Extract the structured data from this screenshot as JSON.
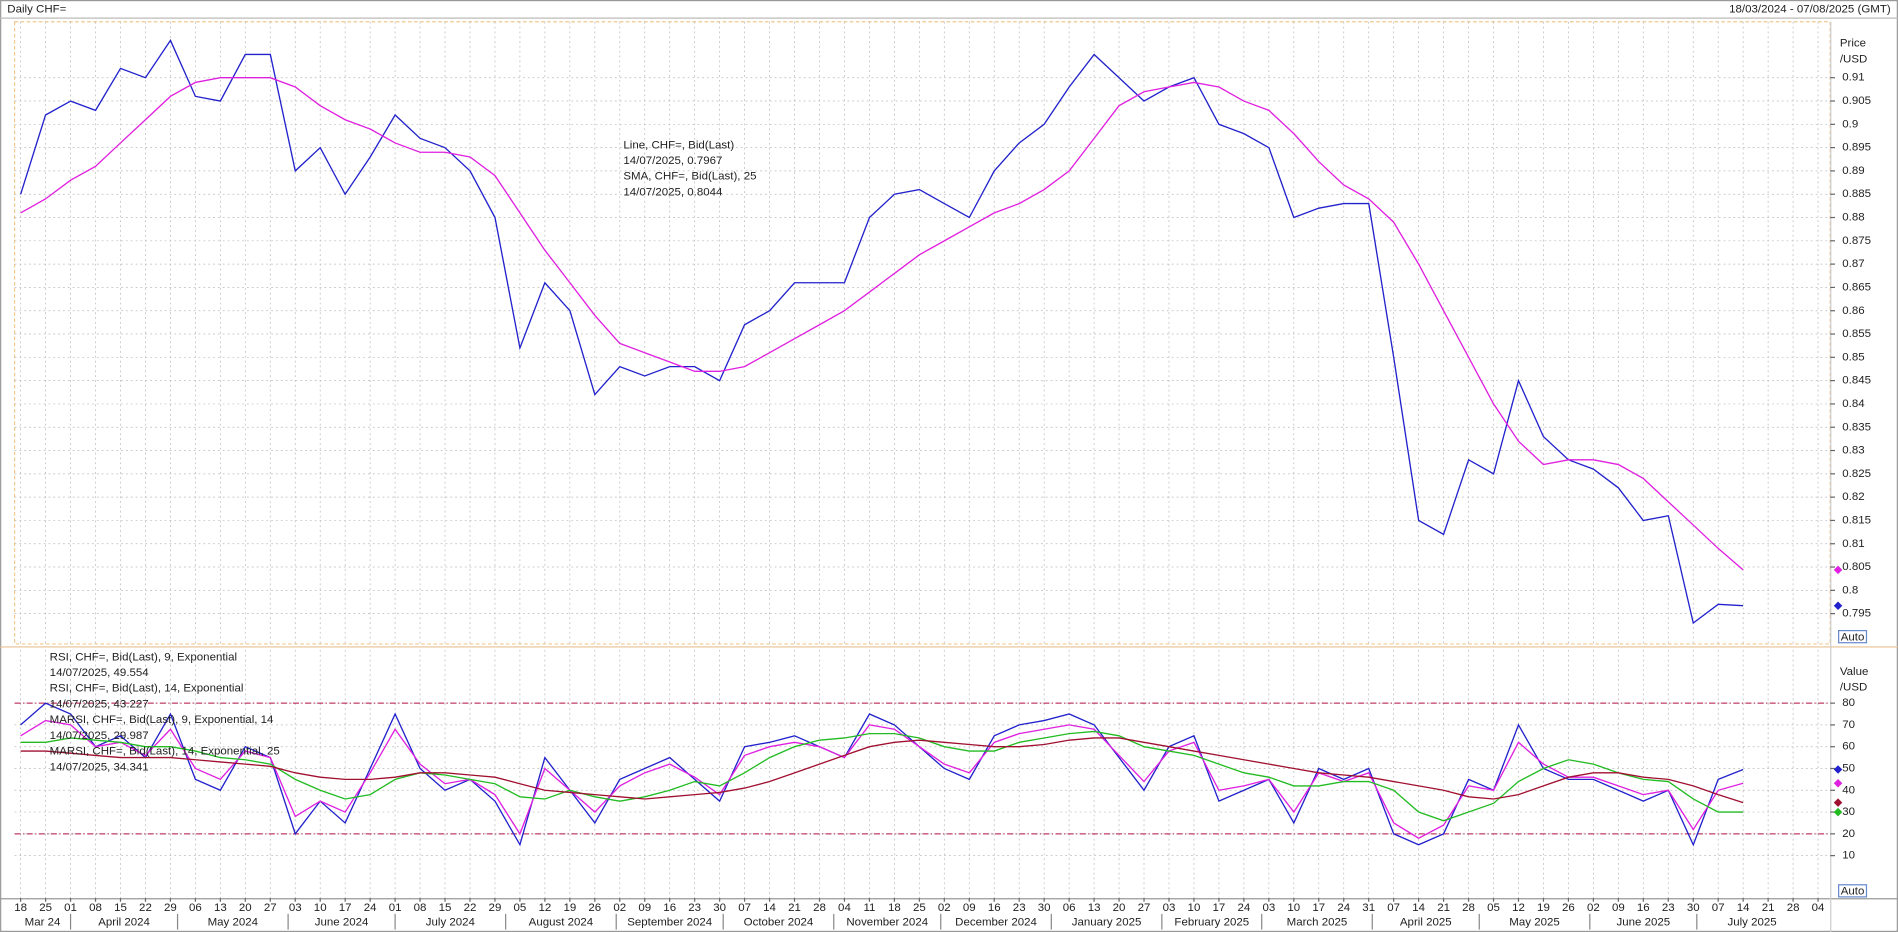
{
  "header": {
    "title": "Daily CHF=",
    "range": "18/03/2024 - 07/08/2025 (GMT)"
  },
  "chart_data": [
    {
      "type": "line",
      "ylabel": "Price",
      "yunit": "/USD",
      "scale_button": "Auto",
      "grid": true,
      "x": [
        "2024-03-18",
        "2024-03-25",
        "2024-04-01",
        "2024-04-08",
        "2024-04-15",
        "2024-04-22",
        "2024-04-29",
        "2024-05-06",
        "2024-05-13",
        "2024-05-20",
        "2024-05-27",
        "2024-06-03",
        "2024-06-10",
        "2024-06-17",
        "2024-06-24",
        "2024-07-01",
        "2024-07-08",
        "2024-07-15",
        "2024-07-22",
        "2024-07-29",
        "2024-08-05",
        "2024-08-12",
        "2024-08-19",
        "2024-08-26",
        "2024-09-02",
        "2024-09-09",
        "2024-09-16",
        "2024-09-23",
        "2024-09-30",
        "2024-10-07",
        "2024-10-14",
        "2024-10-21",
        "2024-10-28",
        "2024-11-04",
        "2024-11-11",
        "2024-11-18",
        "2024-11-25",
        "2024-12-02",
        "2024-12-09",
        "2024-12-16",
        "2024-12-23",
        "2024-12-30",
        "2025-01-06",
        "2025-01-13",
        "2025-01-20",
        "2025-01-27",
        "2025-02-03",
        "2025-02-10",
        "2025-02-17",
        "2025-02-24",
        "2025-03-03",
        "2025-03-10",
        "2025-03-17",
        "2025-03-24",
        "2025-03-31",
        "2025-04-07",
        "2025-04-14",
        "2025-04-21",
        "2025-04-28",
        "2025-05-05",
        "2025-05-12",
        "2025-05-19",
        "2025-05-26",
        "2025-06-02",
        "2025-06-09",
        "2025-06-16",
        "2025-06-23",
        "2025-06-30",
        "2025-07-07",
        "2025-07-14"
      ],
      "ylim": [
        0.7885,
        0.922
      ],
      "yticks": [
        0.795,
        0.8,
        0.805,
        0.81,
        0.815,
        0.82,
        0.825,
        0.83,
        0.835,
        0.84,
        0.845,
        0.85,
        0.855,
        0.86,
        0.865,
        0.87,
        0.875,
        0.88,
        0.885,
        0.89,
        0.895,
        0.9,
        0.905,
        0.91
      ],
      "series": [
        {
          "name": "Line, CHF=, Bid(Last)",
          "last_label": "14/07/2025, 0.7967",
          "color": "#2222cc",
          "values": [
            0.885,
            0.902,
            0.905,
            0.903,
            0.912,
            0.91,
            0.918,
            0.906,
            0.905,
            0.915,
            0.915,
            0.89,
            0.895,
            0.885,
            0.893,
            0.902,
            0.897,
            0.895,
            0.89,
            0.88,
            0.852,
            0.866,
            0.86,
            0.842,
            0.848,
            0.846,
            0.848,
            0.848,
            0.845,
            0.857,
            0.86,
            0.866,
            0.866,
            0.866,
            0.88,
            0.885,
            0.886,
            0.883,
            0.88,
            0.89,
            0.896,
            0.9,
            0.908,
            0.915,
            0.91,
            0.905,
            0.908,
            0.91,
            0.9,
            0.898,
            0.895,
            0.88,
            0.882,
            0.883,
            0.883,
            0.85,
            0.815,
            0.812,
            0.828,
            0.825,
            0.845,
            0.833,
            0.828,
            0.826,
            0.822,
            0.815,
            0.816,
            0.793,
            0.797,
            0.7967
          ]
        },
        {
          "name": "SMA, CHF=, Bid(Last),  25",
          "last_label": "14/07/2025, 0.8044",
          "color": "#e020e0",
          "values": [
            0.881,
            0.884,
            0.888,
            0.891,
            0.896,
            0.901,
            0.906,
            0.909,
            0.91,
            0.91,
            0.91,
            0.908,
            0.904,
            0.901,
            0.899,
            0.896,
            0.894,
            0.894,
            0.893,
            0.889,
            0.881,
            0.873,
            0.866,
            0.859,
            0.853,
            0.851,
            0.849,
            0.847,
            0.847,
            0.848,
            0.851,
            0.854,
            0.857,
            0.86,
            0.864,
            0.868,
            0.872,
            0.875,
            0.878,
            0.881,
            0.883,
            0.886,
            0.89,
            0.897,
            0.904,
            0.907,
            0.908,
            0.909,
            0.908,
            0.905,
            0.903,
            0.898,
            0.892,
            0.887,
            0.884,
            0.879,
            0.87,
            0.86,
            0.85,
            0.84,
            0.832,
            0.827,
            0.828,
            0.828,
            0.827,
            0.824,
            0.819,
            0.814,
            0.809,
            0.8044
          ]
        }
      ]
    },
    {
      "type": "line",
      "ylabel": "Value",
      "yunit": "/USD",
      "scale_button": "Auto",
      "grid": true,
      "x": [
        "2024-03-18",
        "2024-03-25",
        "2024-04-01",
        "2024-04-08",
        "2024-04-15",
        "2024-04-22",
        "2024-04-29",
        "2024-05-06",
        "2024-05-13",
        "2024-05-20",
        "2024-05-27",
        "2024-06-03",
        "2024-06-10",
        "2024-06-17",
        "2024-06-24",
        "2024-07-01",
        "2024-07-08",
        "2024-07-15",
        "2024-07-22",
        "2024-07-29",
        "2024-08-05",
        "2024-08-12",
        "2024-08-19",
        "2024-08-26",
        "2024-09-02",
        "2024-09-09",
        "2024-09-16",
        "2024-09-23",
        "2024-09-30",
        "2024-10-07",
        "2024-10-14",
        "2024-10-21",
        "2024-10-28",
        "2024-11-04",
        "2024-11-11",
        "2024-11-18",
        "2024-11-25",
        "2024-12-02",
        "2024-12-09",
        "2024-12-16",
        "2024-12-23",
        "2024-12-30",
        "2025-01-06",
        "2025-01-13",
        "2025-01-20",
        "2025-01-27",
        "2025-02-03",
        "2025-02-10",
        "2025-02-17",
        "2025-02-24",
        "2025-03-03",
        "2025-03-10",
        "2025-03-17",
        "2025-03-24",
        "2025-03-31",
        "2025-04-07",
        "2025-04-14",
        "2025-04-21",
        "2025-04-28",
        "2025-05-05",
        "2025-05-12",
        "2025-05-19",
        "2025-05-26",
        "2025-06-02",
        "2025-06-09",
        "2025-06-16",
        "2025-06-23",
        "2025-06-30",
        "2025-07-07",
        "2025-07-14"
      ],
      "ylim": [
        -9.5,
        104.4
      ],
      "yticks": [
        10,
        20,
        30,
        40,
        50,
        60,
        70,
        80
      ],
      "ref_lines": [
        20,
        80
      ],
      "xticks": [
        {
          "value": "2024-03-18",
          "label": "18"
        },
        {
          "value": "2024-03-25",
          "label": "25"
        },
        {
          "value": "2024-04-01",
          "label": "01"
        },
        {
          "value": "2024-04-08",
          "label": "08"
        },
        {
          "value": "2024-04-15",
          "label": "15"
        },
        {
          "value": "2024-04-22",
          "label": "22"
        },
        {
          "value": "2024-04-29",
          "label": "29"
        },
        {
          "value": "2024-05-06",
          "label": "06"
        },
        {
          "value": "2024-05-13",
          "label": "13"
        },
        {
          "value": "2024-05-20",
          "label": "20"
        },
        {
          "value": "2024-05-27",
          "label": "27"
        },
        {
          "value": "2024-06-03",
          "label": "03"
        },
        {
          "value": "2024-06-10",
          "label": "10"
        },
        {
          "value": "2024-06-17",
          "label": "17"
        },
        {
          "value": "2024-06-24",
          "label": "24"
        },
        {
          "value": "2024-07-01",
          "label": "01"
        },
        {
          "value": "2024-07-08",
          "label": "08"
        },
        {
          "value": "2024-07-15",
          "label": "15"
        },
        {
          "value": "2024-07-22",
          "label": "22"
        },
        {
          "value": "2024-07-29",
          "label": "29"
        },
        {
          "value": "2024-08-05",
          "label": "05"
        },
        {
          "value": "2024-08-12",
          "label": "12"
        },
        {
          "value": "2024-08-19",
          "label": "19"
        },
        {
          "value": "2024-08-26",
          "label": "26"
        },
        {
          "value": "2024-09-02",
          "label": "02"
        },
        {
          "value": "2024-09-09",
          "label": "09"
        },
        {
          "value": "2024-09-16",
          "label": "16"
        },
        {
          "value": "2024-09-23",
          "label": "23"
        },
        {
          "value": "2024-09-30",
          "label": "30"
        },
        {
          "value": "2024-10-07",
          "label": "07"
        },
        {
          "value": "2024-10-14",
          "label": "14"
        },
        {
          "value": "2024-10-21",
          "label": "21"
        },
        {
          "value": "2024-10-28",
          "label": "28"
        },
        {
          "value": "2024-11-04",
          "label": "04"
        },
        {
          "value": "2024-11-11",
          "label": "11"
        },
        {
          "value": "2024-11-18",
          "label": "18"
        },
        {
          "value": "2024-11-25",
          "label": "25"
        },
        {
          "value": "2024-12-02",
          "label": "02"
        },
        {
          "value": "2024-12-09",
          "label": "09"
        },
        {
          "value": "2024-12-16",
          "label": "16"
        },
        {
          "value": "2024-12-23",
          "label": "23"
        },
        {
          "value": "2024-12-30",
          "label": "30"
        },
        {
          "value": "2025-01-06",
          "label": "06"
        },
        {
          "value": "2025-01-13",
          "label": "13"
        },
        {
          "value": "2025-01-20",
          "label": "20"
        },
        {
          "value": "2025-01-27",
          "label": "27"
        },
        {
          "value": "2025-02-03",
          "label": "03"
        },
        {
          "value": "2025-02-10",
          "label": "10"
        },
        {
          "value": "2025-02-17",
          "label": "17"
        },
        {
          "value": "2025-02-24",
          "label": "24"
        },
        {
          "value": "2025-03-03",
          "label": "03"
        },
        {
          "value": "2025-03-10",
          "label": "10"
        },
        {
          "value": "2025-03-17",
          "label": "17"
        },
        {
          "value": "2025-03-24",
          "label": "24"
        },
        {
          "value": "2025-03-31",
          "label": "31"
        },
        {
          "value": "2025-04-07",
          "label": "07"
        },
        {
          "value": "2025-04-14",
          "label": "14"
        },
        {
          "value": "2025-04-21",
          "label": "21"
        },
        {
          "value": "2025-04-28",
          "label": "28"
        },
        {
          "value": "2025-05-05",
          "label": "05"
        },
        {
          "value": "2025-05-12",
          "label": "12"
        },
        {
          "value": "2025-05-19",
          "label": "19"
        },
        {
          "value": "2025-05-26",
          "label": "26"
        },
        {
          "value": "2025-06-02",
          "label": "02"
        },
        {
          "value": "2025-06-09",
          "label": "09"
        },
        {
          "value": "2025-06-16",
          "label": "16"
        },
        {
          "value": "2025-06-23",
          "label": "23"
        },
        {
          "value": "2025-06-30",
          "label": "30"
        },
        {
          "value": "2025-07-07",
          "label": "07"
        },
        {
          "value": "2025-07-14",
          "label": "14"
        },
        {
          "value": "2025-07-21",
          "label": "21"
        },
        {
          "value": "2025-07-28",
          "label": "28"
        },
        {
          "value": "2025-08-04",
          "label": "04"
        }
      ],
      "month_labels": [
        {
          "value": "2024-03",
          "label": "Mar 24"
        },
        {
          "value": "2024-04",
          "label": "April 2024"
        },
        {
          "value": "2024-05",
          "label": "May 2024"
        },
        {
          "value": "2024-06",
          "label": "June 2024"
        },
        {
          "value": "2024-07",
          "label": "July 2024"
        },
        {
          "value": "2024-08",
          "label": "August 2024"
        },
        {
          "value": "2024-09",
          "label": "September 2024"
        },
        {
          "value": "2024-10",
          "label": "October 2024"
        },
        {
          "value": "2024-11",
          "label": "November 2024"
        },
        {
          "value": "2024-12",
          "label": "December 2024"
        },
        {
          "value": "2025-01",
          "label": "January 2025"
        },
        {
          "value": "2025-02",
          "label": "February 2025"
        },
        {
          "value": "2025-03",
          "label": "March 2025"
        },
        {
          "value": "2025-04",
          "label": "April 2025"
        },
        {
          "value": "2025-05",
          "label": "May 2025"
        },
        {
          "value": "2025-06",
          "label": "June 2025"
        },
        {
          "value": "2025-07",
          "label": "July 2025"
        }
      ],
      "series": [
        {
          "name": "RSI, CHF=, Bid(Last),  9, Exponential",
          "last_label": "14/07/2025, 49.554",
          "color": "#2222cc",
          "values": [
            70,
            80,
            75,
            60,
            65,
            55,
            75,
            45,
            40,
            60,
            55,
            20,
            35,
            25,
            50,
            75,
            50,
            40,
            45,
            35,
            15,
            55,
            40,
            25,
            45,
            50,
            55,
            45,
            35,
            60,
            62,
            65,
            60,
            55,
            75,
            70,
            60,
            50,
            45,
            65,
            70,
            72,
            75,
            70,
            55,
            40,
            60,
            65,
            35,
            40,
            45,
            25,
            50,
            45,
            50,
            20,
            15,
            20,
            45,
            40,
            70,
            50,
            45,
            45,
            40,
            35,
            40,
            15,
            45,
            49.554
          ]
        },
        {
          "name": "RSI, CHF=, Bid(Last),  14, Exponential",
          "last_label": "14/07/2025, 43.227",
          "color": "#e020e0",
          "values": [
            65,
            72,
            70,
            60,
            62,
            56,
            68,
            50,
            45,
            58,
            55,
            28,
            35,
            30,
            48,
            68,
            52,
            43,
            45,
            38,
            20,
            50,
            40,
            30,
            42,
            48,
            52,
            46,
            38,
            56,
            60,
            62,
            60,
            55,
            70,
            68,
            60,
            52,
            48,
            62,
            66,
            68,
            70,
            68,
            56,
            44,
            58,
            62,
            40,
            42,
            45,
            30,
            48,
            44,
            48,
            25,
            18,
            24,
            42,
            40,
            62,
            52,
            46,
            46,
            42,
            38,
            40,
            22,
            40,
            43.227
          ]
        },
        {
          "name": "MARSI, CHF=, Bid(Last),  9, Exponential, 14",
          "last_label": "14/07/2025, 29.987",
          "color": "#22bb22",
          "values": [
            62,
            62,
            64,
            63,
            62,
            60,
            60,
            58,
            55,
            54,
            52,
            45,
            40,
            36,
            38,
            45,
            48,
            47,
            45,
            43,
            37,
            36,
            40,
            37,
            35,
            37,
            40,
            44,
            42,
            48,
            55,
            60,
            63,
            64,
            66,
            66,
            64,
            60,
            58,
            58,
            62,
            64,
            66,
            67,
            65,
            60,
            58,
            56,
            52,
            48,
            46,
            42,
            42,
            44,
            44,
            40,
            30,
            26,
            30,
            34,
            44,
            50,
            54,
            52,
            48,
            45,
            44,
            36,
            30,
            29.987
          ]
        },
        {
          "name": "MARSI, CHF=, Bid(Last),  14, Exponential, 25",
          "last_label": "14/07/2025, 34.341",
          "color": "#a01030",
          "values": [
            58,
            58,
            57,
            56,
            55,
            55,
            55,
            54,
            53,
            52,
            51,
            48,
            46,
            45,
            45,
            46,
            48,
            48,
            47,
            46,
            43,
            40,
            39,
            38,
            37,
            36,
            37,
            38,
            39,
            41,
            44,
            48,
            52,
            56,
            60,
            62,
            63,
            62,
            61,
            60,
            60,
            61,
            63,
            64,
            64,
            62,
            60,
            58,
            56,
            54,
            52,
            50,
            48,
            47,
            46,
            44,
            42,
            40,
            37,
            36,
            38,
            42,
            46,
            48,
            48,
            46,
            45,
            42,
            38,
            34.341
          ]
        }
      ]
    }
  ]
}
